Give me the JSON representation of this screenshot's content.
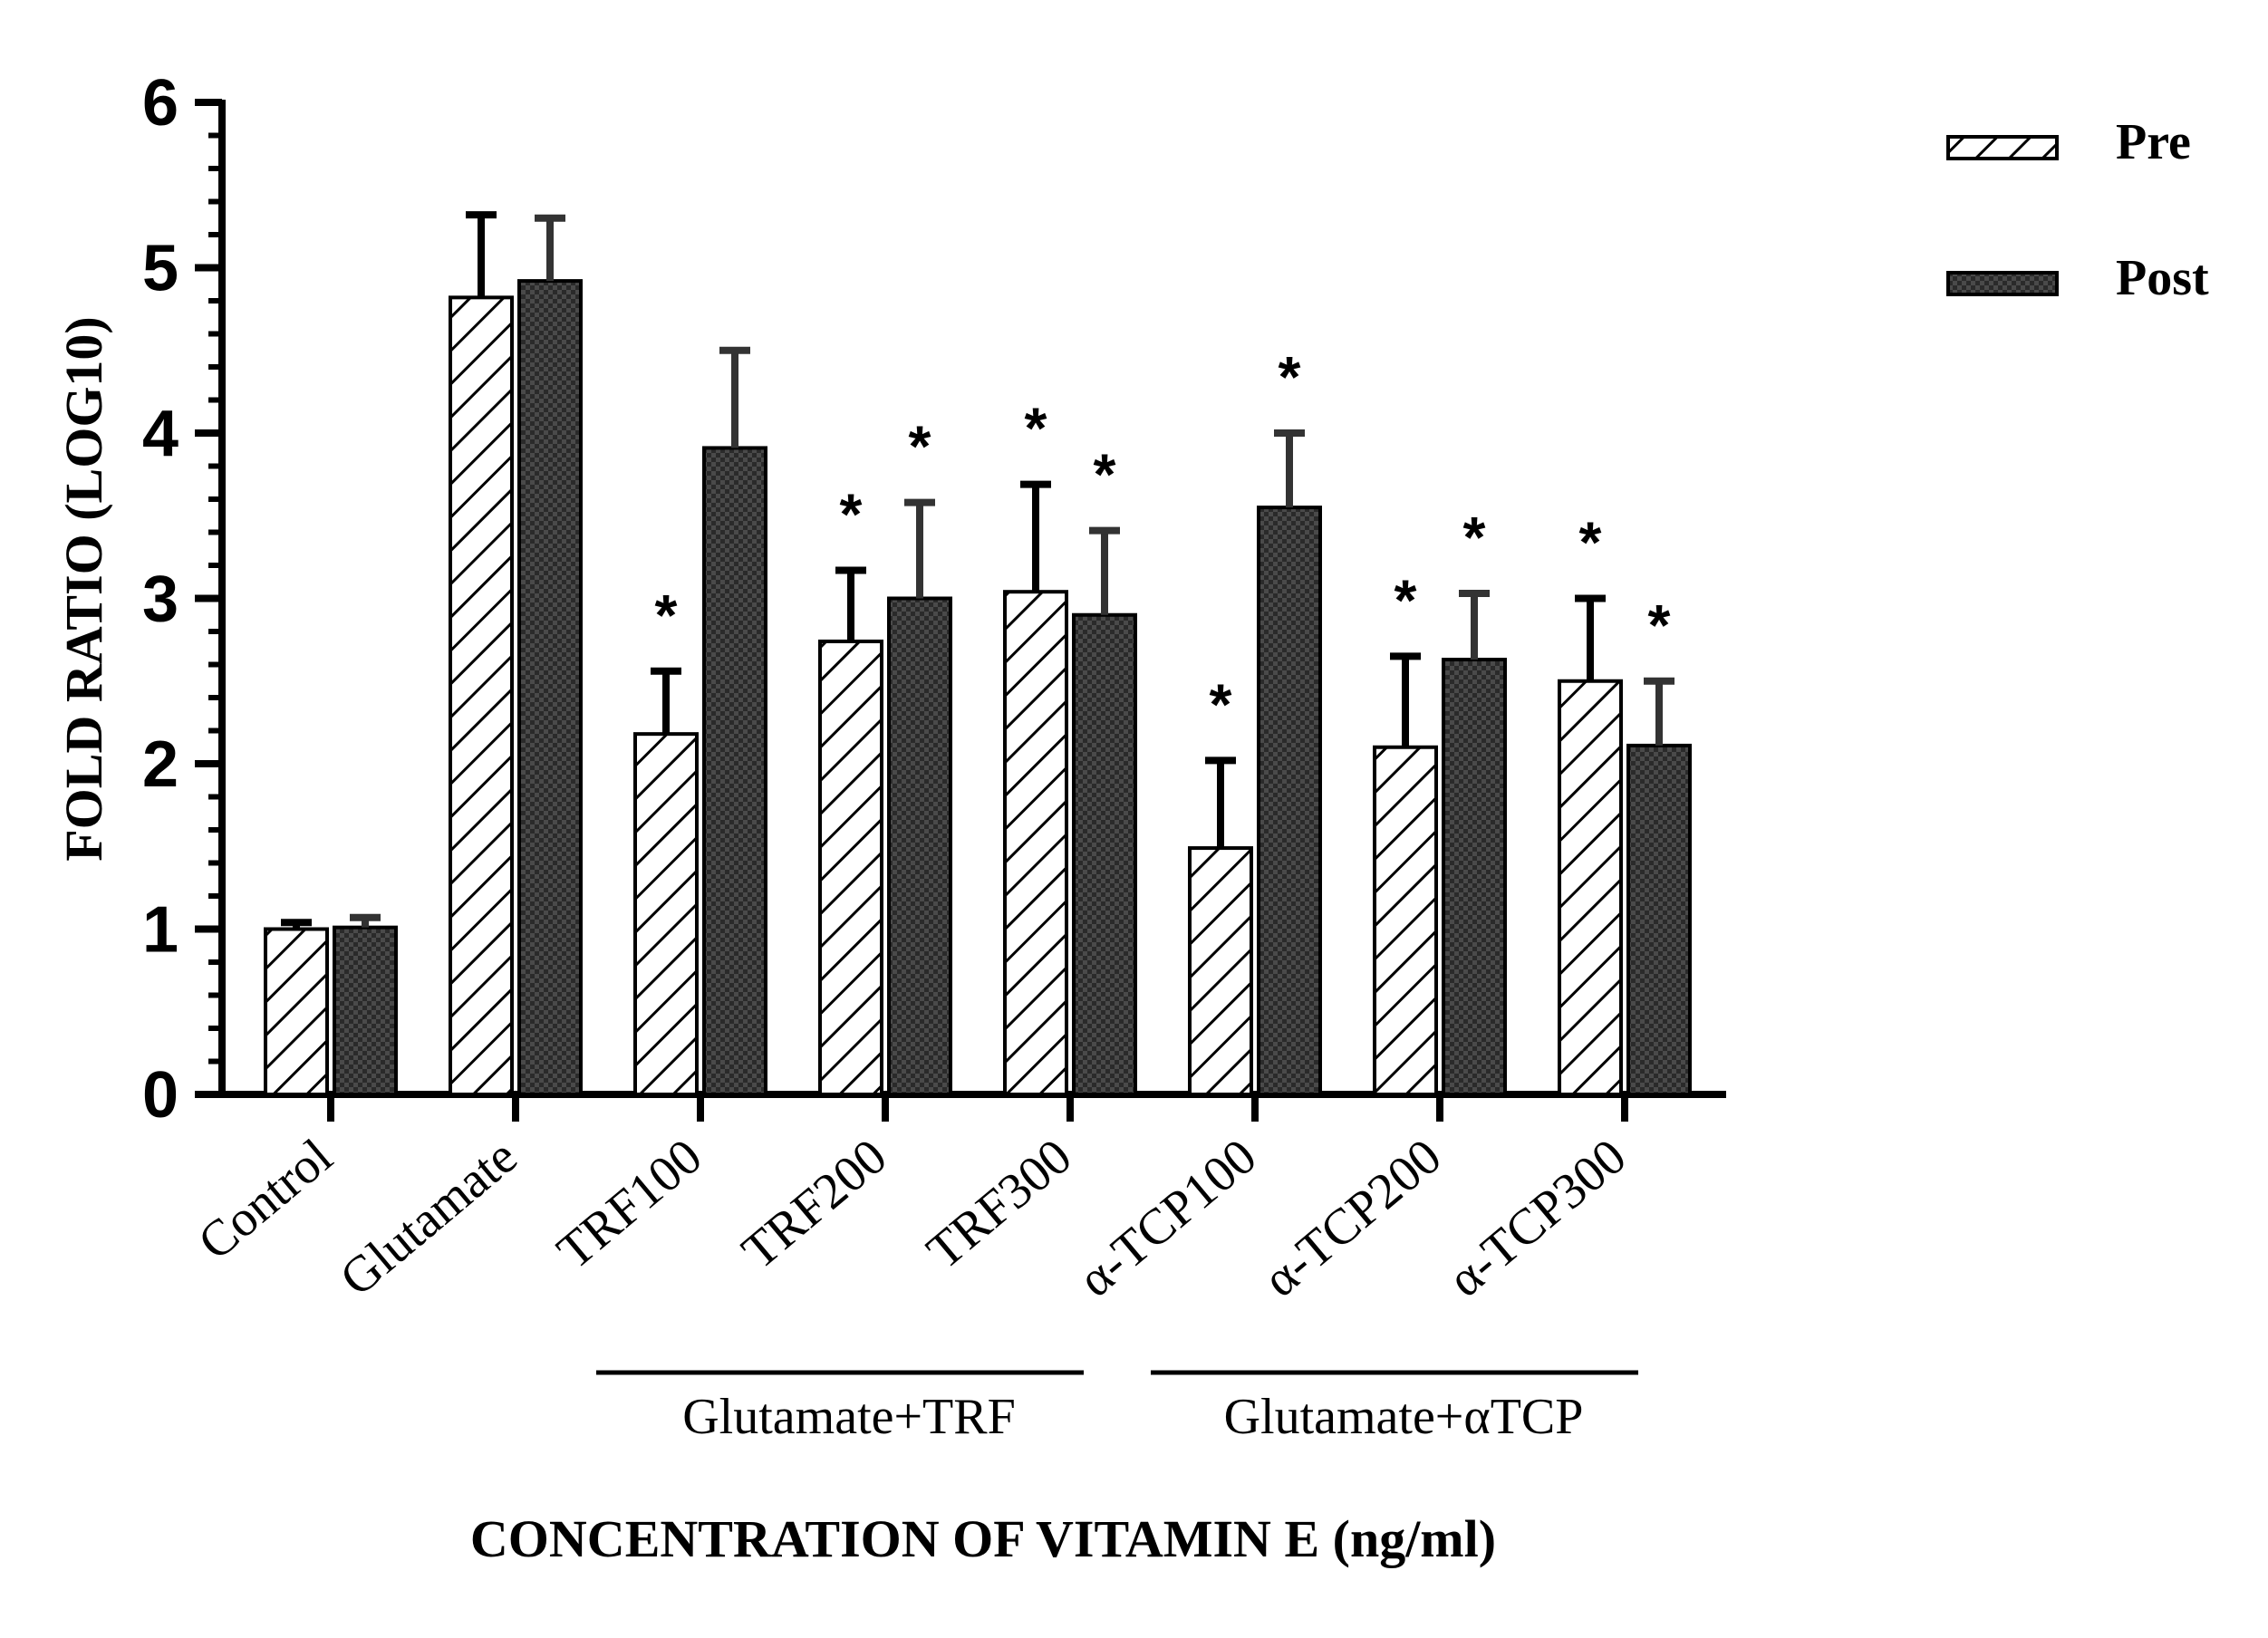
{
  "chart_data": {
    "type": "bar",
    "title": "",
    "xlabel": "CONCENTRATION OF VITAMIN E (ng/ml)",
    "ylabel": "FOLD RATIO (LOG10)",
    "ylim": [
      0,
      6
    ],
    "yticks": [
      "0",
      "1",
      "2",
      "3",
      "4",
      "5",
      "6"
    ],
    "categories": [
      "Control",
      "Glutamate",
      "TRF100",
      "TRF200",
      "TRF300",
      "α-TCP100",
      "α-TCP200",
      "α-TCP300"
    ],
    "series": [
      {
        "name": "Pre",
        "pattern": "diagonal-hatch",
        "values": [
          1.0,
          4.82,
          2.18,
          2.74,
          3.04,
          1.49,
          2.1,
          2.5
        ],
        "errors": [
          0.04,
          0.5,
          0.38,
          0.43,
          0.65,
          0.53,
          0.55,
          0.5
        ],
        "significance": [
          "",
          "",
          "*",
          "*",
          "*",
          "*",
          "*",
          "*"
        ]
      },
      {
        "name": "Post",
        "pattern": "checker",
        "values": [
          1.01,
          4.92,
          3.91,
          3.0,
          2.9,
          3.55,
          2.63,
          2.11
        ],
        "errors": [
          0.06,
          0.38,
          0.59,
          0.58,
          0.51,
          0.45,
          0.4,
          0.39
        ],
        "significance": [
          "",
          "",
          "",
          "*",
          "*",
          "*",
          "*",
          "*"
        ]
      }
    ],
    "groups": [
      {
        "label": "Glutamate+TRF",
        "categories": [
          "TRF100",
          "TRF200",
          "TRF300"
        ]
      },
      {
        "label": "Glutamate+αTCP",
        "categories": [
          "α-TCP100",
          "α-TCP200",
          "α-TCP300"
        ]
      }
    ],
    "legend": {
      "placement": "top-right",
      "entries": [
        "Pre",
        "Post"
      ]
    },
    "grid": false
  }
}
